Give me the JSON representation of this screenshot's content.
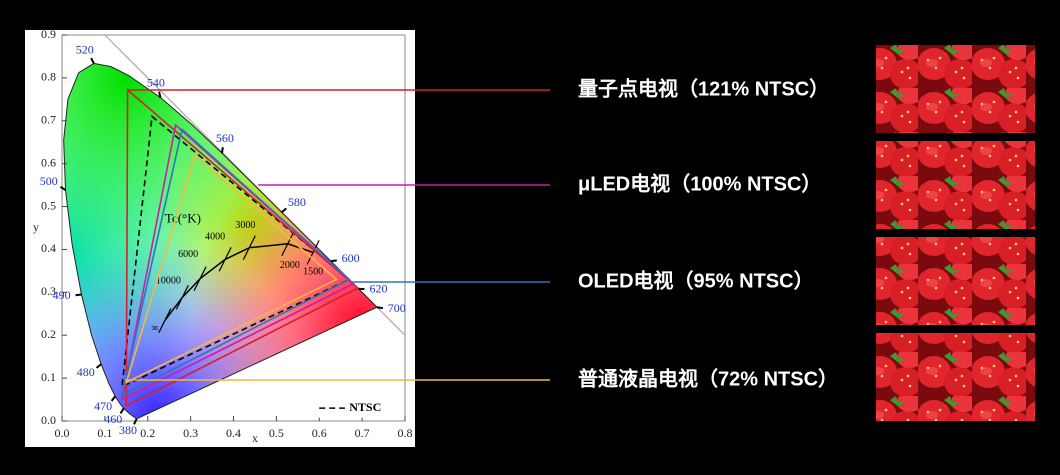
{
  "chart_data": {
    "type": "chromaticity",
    "xlabel": "x",
    "ylabel": "y",
    "xlim": [
      0,
      0.8
    ],
    "ylim": [
      0,
      0.9
    ],
    "xticks": [
      {
        "value": 0,
        "label": "0.0"
      },
      {
        "value": 0.1,
        "label": "0.1"
      },
      {
        "value": 0.2,
        "label": "0.2"
      },
      {
        "value": 0.3,
        "label": "0.3"
      },
      {
        "value": 0.4,
        "label": "0.4"
      },
      {
        "value": 0.5,
        "label": "0.5"
      },
      {
        "value": 0.6,
        "label": "0.6"
      },
      {
        "value": 0.7,
        "label": "0.7"
      },
      {
        "value": 0.8,
        "label": "0.8"
      }
    ],
    "yticks": [
      {
        "value": 0,
        "label": "0.0"
      },
      {
        "value": 0.1,
        "label": "0.1"
      },
      {
        "value": 0.2,
        "label": "0.2"
      },
      {
        "value": 0.3,
        "label": "0.3"
      },
      {
        "value": 0.4,
        "label": "0.4"
      },
      {
        "value": 0.5,
        "label": "0.5"
      },
      {
        "value": 0.6,
        "label": "0.6"
      },
      {
        "value": 0.7,
        "label": "0.7"
      },
      {
        "value": 0.8,
        "label": "0.8"
      },
      {
        "value": 0.9,
        "label": "0.9"
      }
    ],
    "locus": {
      "x": [
        0.1741,
        0.1566,
        0.144,
        0.1355,
        0.1241,
        0.1096,
        0.0913,
        0.0687,
        0.0454,
        0.0235,
        0.0082,
        0.0039,
        0.0139,
        0.0389,
        0.0743,
        0.1142,
        0.1547,
        0.2296,
        0.3016,
        0.3731,
        0.4441,
        0.5125,
        0.5752,
        0.627,
        0.6658,
        0.6915,
        0.719,
        0.7347
      ],
      "y": [
        0.005,
        0.0177,
        0.0297,
        0.0399,
        0.0578,
        0.0868,
        0.1327,
        0.2007,
        0.295,
        0.4127,
        0.5384,
        0.6548,
        0.7502,
        0.812,
        0.8338,
        0.8262,
        0.8059,
        0.7543,
        0.6923,
        0.6245,
        0.5547,
        0.4866,
        0.4242,
        0.3725,
        0.334,
        0.3083,
        0.2809,
        0.2653
      ],
      "labels": [
        "380",
        null,
        "460",
        null,
        "470",
        null,
        "480",
        null,
        "490",
        null,
        "500",
        null,
        null,
        null,
        "520",
        null,
        null,
        "540",
        null,
        "560",
        null,
        "580",
        null,
        "600",
        null,
        "620",
        null,
        "700"
      ]
    },
    "planckian": {
      "title": "Tc(°K)",
      "x": [
        0.2399,
        0.2807,
        0.3221,
        0.3805,
        0.4369,
        0.5267,
        0.5857
      ],
      "y": [
        0.2342,
        0.2884,
        0.3318,
        0.3768,
        0.4041,
        0.4133,
        0.3931
      ],
      "labels": [
        "∞",
        "10000",
        "6000",
        "4000",
        "3000",
        "2000",
        "1500"
      ]
    },
    "reference": {
      "name": "NTSC",
      "color": "#000000",
      "x": [
        0.67,
        0.21,
        0.14
      ],
      "y": [
        0.33,
        0.71,
        0.08
      ]
    },
    "series": [
      {
        "name": "量子点电视（121% NTSC）",
        "color": "#d81e2a",
        "x": [
          0.153,
          0.69,
          0.15
        ],
        "y": [
          0.772,
          0.31,
          0.035
        ]
      },
      {
        "name": "μLED电视（100% NTSC）",
        "color": "#c81eaa",
        "x": [
          0.265,
          0.68,
          0.14
        ],
        "y": [
          0.69,
          0.32,
          0.05
        ]
      },
      {
        "name": "OLED电视（95% NTSC）",
        "color": "#2e75b6",
        "x": [
          0.28,
          0.67,
          0.14
        ],
        "y": [
          0.68,
          0.33,
          0.06
        ]
      },
      {
        "name": "普通液晶电视（72% NTSC）",
        "color": "#f5b841",
        "x": [
          0.31,
          0.64,
          0.15
        ],
        "y": [
          0.62,
          0.33,
          0.09
        ]
      }
    ]
  }
}
